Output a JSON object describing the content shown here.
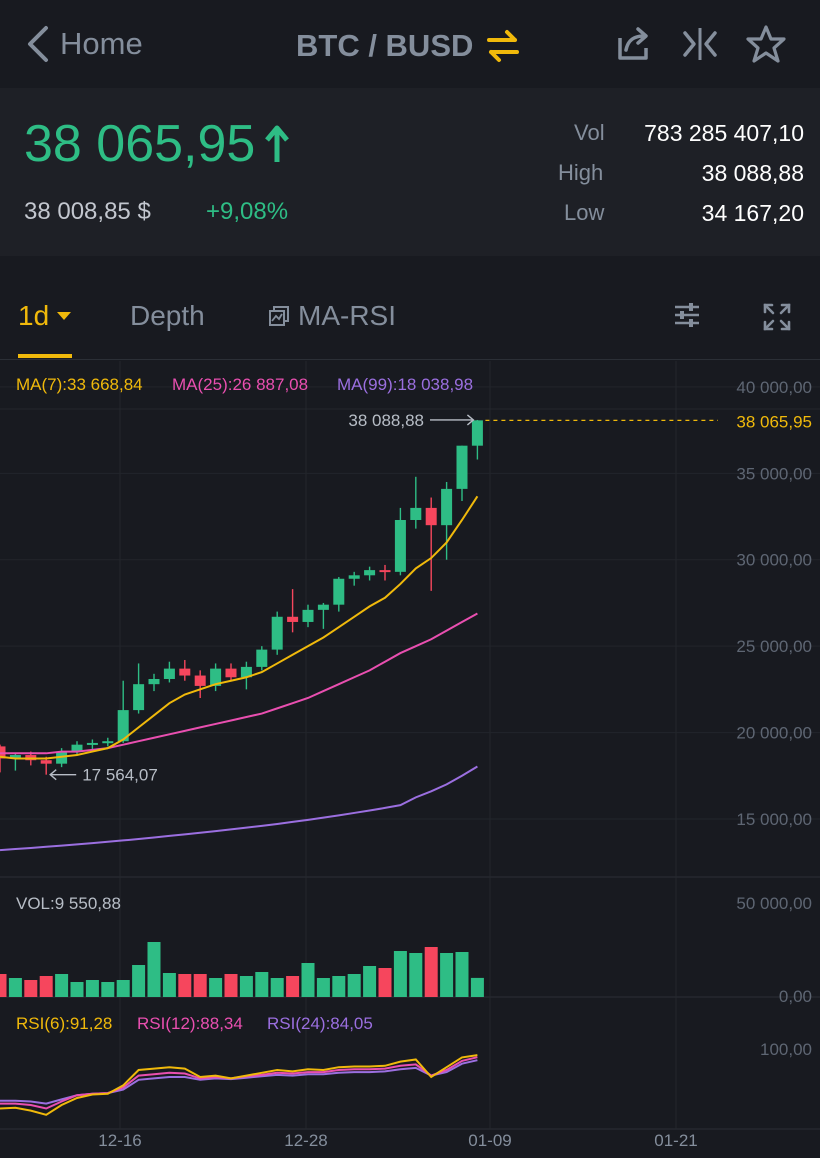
{
  "nav": {
    "back_label": "Home",
    "pair_label": "BTC / BUSD",
    "icons": [
      "chevron-left-icon",
      "swap-arrows-icon",
      "share-icon",
      "compare-icon",
      "star-icon"
    ]
  },
  "ticker": {
    "last_price": "38 065,95",
    "fiat_price": "38 008,85 $",
    "change": "+9,08%",
    "vol_label": "Vol",
    "vol_value": "783 285 407,10",
    "high_label": "High",
    "high_value": "38 088,88",
    "low_label": "Low",
    "low_value": "34 167,20"
  },
  "tabs": {
    "interval": "1d",
    "depth": "Depth",
    "indicator": "MA-RSI",
    "icons": [
      "sliders-icon",
      "fullscreen-icon"
    ]
  },
  "colors": {
    "up": "#2ebd85",
    "down": "#f6465d",
    "accent": "#f0b90b",
    "ma7": "#f0b90b",
    "ma25": "#e94fb0",
    "ma99": "#9b6fe0",
    "rsi6": "#f0b90b",
    "rsi12": "#e94fb0",
    "rsi24": "#9b6fe0"
  },
  "chart_data": [
    {
      "type": "candlestick",
      "legend": {
        "ma7": "MA(7):33 668,84",
        "ma25": "MA(25):26 887,08",
        "ma99": "MA(99):18 038,98"
      },
      "y_ticks": [
        40000,
        35000,
        30000,
        25000,
        20000,
        15000
      ],
      "y_tick_labels": [
        "40 000,00",
        "35 000,00",
        "30 000,00",
        "25 000,00",
        "20 000,00",
        "15 000,00"
      ],
      "ylim": [
        12800,
        41500
      ],
      "x_ticks": [
        "12-16",
        "12-28",
        "01-09",
        "01-21"
      ],
      "last_price_label": "38 065,95",
      "max_label": "38 088,88",
      "min_label": "17 564,07",
      "candles": [
        {
          "o": 19200,
          "h": 19300,
          "l": 17700,
          "c": 18500
        },
        {
          "o": 18500,
          "h": 18800,
          "l": 17800,
          "c": 18700
        },
        {
          "o": 18700,
          "h": 18900,
          "l": 18100,
          "c": 18400
        },
        {
          "o": 18400,
          "h": 18600,
          "l": 17564,
          "c": 18200
        },
        {
          "o": 18200,
          "h": 19100,
          "l": 18000,
          "c": 18900
        },
        {
          "o": 18900,
          "h": 19500,
          "l": 18700,
          "c": 19300
        },
        {
          "o": 19300,
          "h": 19600,
          "l": 19000,
          "c": 19400
        },
        {
          "o": 19400,
          "h": 19700,
          "l": 19200,
          "c": 19500
        },
        {
          "o": 19500,
          "h": 23000,
          "l": 19400,
          "c": 21300
        },
        {
          "o": 21300,
          "h": 24000,
          "l": 21100,
          "c": 22800
        },
        {
          "o": 22800,
          "h": 23400,
          "l": 22400,
          "c": 23100
        },
        {
          "o": 23100,
          "h": 24100,
          "l": 22900,
          "c": 23700
        },
        {
          "o": 23700,
          "h": 24200,
          "l": 23000,
          "c": 23300
        },
        {
          "o": 23300,
          "h": 23600,
          "l": 22000,
          "c": 22700
        },
        {
          "o": 22700,
          "h": 24000,
          "l": 22400,
          "c": 23700
        },
        {
          "o": 23700,
          "h": 24000,
          "l": 23000,
          "c": 23200
        },
        {
          "o": 23200,
          "h": 24100,
          "l": 22500,
          "c": 23800
        },
        {
          "o": 23800,
          "h": 25000,
          "l": 23600,
          "c": 24800
        },
        {
          "o": 24800,
          "h": 27000,
          "l": 24500,
          "c": 26700
        },
        {
          "o": 26700,
          "h": 28300,
          "l": 25800,
          "c": 26400
        },
        {
          "o": 26400,
          "h": 27400,
          "l": 26100,
          "c": 27100
        },
        {
          "o": 27100,
          "h": 27500,
          "l": 26000,
          "c": 27400
        },
        {
          "o": 27400,
          "h": 29000,
          "l": 27000,
          "c": 28900
        },
        {
          "o": 28900,
          "h": 29300,
          "l": 28500,
          "c": 29100
        },
        {
          "o": 29100,
          "h": 29600,
          "l": 28800,
          "c": 29400
        },
        {
          "o": 29400,
          "h": 29700,
          "l": 28800,
          "c": 29300
        },
        {
          "o": 29300,
          "h": 33000,
          "l": 29100,
          "c": 32300
        },
        {
          "o": 32300,
          "h": 34800,
          "l": 31800,
          "c": 33000
        },
        {
          "o": 33000,
          "h": 33600,
          "l": 28200,
          "c": 32000
        },
        {
          "o": 32000,
          "h": 34500,
          "l": 30000,
          "c": 34100
        },
        {
          "o": 34100,
          "h": 36600,
          "l": 33400,
          "c": 36600
        },
        {
          "o": 36600,
          "h": 38088.88,
          "l": 35800,
          "c": 38065.95
        }
      ],
      "ma7": [
        18600,
        18500,
        18500,
        18500,
        18600,
        18700,
        18900,
        19100,
        19600,
        20300,
        21000,
        21700,
        22200,
        22500,
        22800,
        23000,
        23200,
        23500,
        24000,
        24500,
        25000,
        25500,
        26100,
        26700,
        27300,
        27800,
        28600,
        29500,
        30100,
        31000,
        32300,
        33668.84
      ],
      "ma25": [
        18800,
        18800,
        18800,
        18800,
        18900,
        18900,
        19000,
        19100,
        19300,
        19500,
        19700,
        19900,
        20100,
        20300,
        20500,
        20700,
        20900,
        21100,
        21400,
        21700,
        22000,
        22400,
        22800,
        23200,
        23600,
        24100,
        24600,
        25000,
        25400,
        25900,
        26400,
        26887.08
      ],
      "ma99": [
        13200,
        13260,
        13320,
        13390,
        13460,
        13530,
        13600,
        13680,
        13760,
        13840,
        13930,
        14020,
        14110,
        14200,
        14300,
        14400,
        14500,
        14600,
        14710,
        14830,
        14950,
        15080,
        15210,
        15350,
        15490,
        15640,
        15800,
        16250,
        16600,
        17000,
        17500,
        18038.98
      ]
    },
    {
      "type": "bar",
      "legend": "VOL:9 550,88",
      "y_tick_labels": [
        "50 000,00",
        "0,00"
      ],
      "ylim": [
        0,
        50000
      ],
      "values": [
        11500,
        9500,
        8500,
        10500,
        11500,
        7500,
        8500,
        7500,
        8500,
        16000,
        27500,
        12000,
        11500,
        11500,
        9500,
        11500,
        10500,
        12500,
        9500,
        10500,
        17000,
        9500,
        10500,
        11500,
        15500,
        14500,
        23000,
        22000,
        25000,
        22000,
        22500,
        9550.88
      ]
    },
    {
      "type": "line",
      "legend": {
        "rsi6": "RSI(6):91,28",
        "rsi12": "RSI(12):88,34",
        "rsi24": "RSI(24):84,05"
      },
      "y_tick_labels": [
        "100,00"
      ],
      "rsi6": [
        15,
        16,
        12,
        6,
        20,
        30,
        35,
        36,
        48,
        70,
        72,
        74,
        72,
        60,
        62,
        58,
        62,
        66,
        70,
        68,
        71,
        70,
        74,
        75,
        75,
        76,
        82,
        85,
        60,
        74,
        88,
        91.28
      ],
      "rsi12": [
        22,
        22,
        20,
        15,
        25,
        34,
        36,
        37,
        45,
        62,
        64,
        66,
        65,
        58,
        60,
        58,
        61,
        63,
        66,
        65,
        67,
        67,
        70,
        71,
        71,
        72,
        76,
        78,
        62,
        70,
        83,
        88.34
      ],
      "rsi24": [
        26,
        26,
        25,
        22,
        28,
        34,
        36,
        37,
        42,
        56,
        58,
        60,
        60,
        56,
        58,
        57,
        59,
        61,
        63,
        62,
        64,
        64,
        66,
        67,
        67,
        68,
        71,
        73,
        62,
        67,
        79,
        84.05
      ]
    }
  ]
}
